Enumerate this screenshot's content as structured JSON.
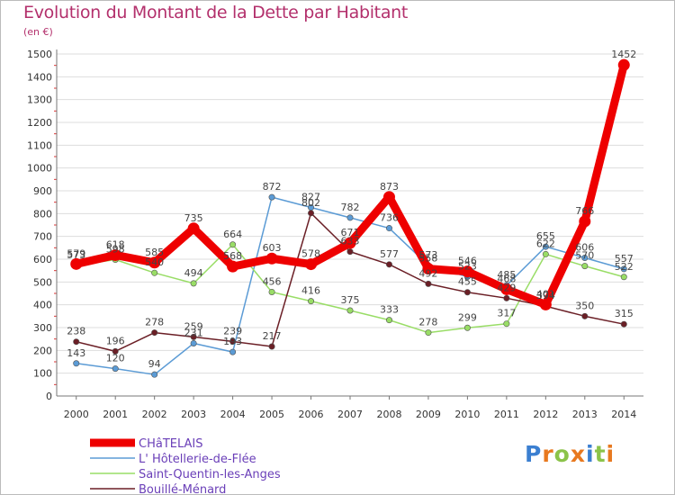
{
  "title": "Evolution du Montant de la Dette par Habitant",
  "unit_label": "(en €)",
  "logo": {
    "text": "Proxiti",
    "letters": [
      "P",
      "r",
      "o",
      "x",
      "i",
      "t",
      "i"
    ],
    "colors": [
      "#3b7fd1",
      "#e8791f",
      "#8bc34a",
      "#e8791f",
      "#3b7fd1",
      "#8bc34a",
      "#e8791f"
    ]
  },
  "chart_data": {
    "type": "line",
    "title": "Evolution du Montant de la Dette par Habitant",
    "ylabel": "(en €)",
    "xlabel": "",
    "x": [
      "2000",
      "2001",
      "2002",
      "2003",
      "2004",
      "2005",
      "2006",
      "2007",
      "2008",
      "2009",
      "2010",
      "2011",
      "2012",
      "2013",
      "2014"
    ],
    "ylim": [
      0,
      1500
    ],
    "yticks": [
      0,
      100,
      200,
      300,
      400,
      500,
      600,
      700,
      800,
      900,
      1000,
      1100,
      1200,
      1300,
      1400,
      1500
    ],
    "grid": "horizontal",
    "legend_position": "bottom-left",
    "series": [
      {
        "name": "CHâTELAIS",
        "color": "#ee0000",
        "values": [
          579,
          618,
          585,
          735,
          568,
          603,
          578,
          671,
          873,
          558,
          546,
          468,
          401,
          766,
          1452
        ]
      },
      {
        "name": "L' Hôtellerie-de-Flée",
        "color": "#5b9bd5",
        "values": [
          143,
          120,
          94,
          231,
          193,
          872,
          827,
          782,
          736,
          573,
          523,
          485,
          655,
          606,
          557
        ]
      },
      {
        "name": "Saint-Quentin-les-Anges",
        "color": "#99dd66",
        "values": [
          573,
          598,
          540,
          494,
          664,
          456,
          416,
          375,
          333,
          278,
          299,
          317,
          622,
          570,
          522
        ]
      },
      {
        "name": "Bouillé-Ménard",
        "color": "#6b1f26",
        "values": [
          238,
          196,
          278,
          259,
          239,
          217,
          802,
          633,
          577,
          492,
          455,
          429,
          394,
          350,
          315
        ]
      }
    ]
  }
}
